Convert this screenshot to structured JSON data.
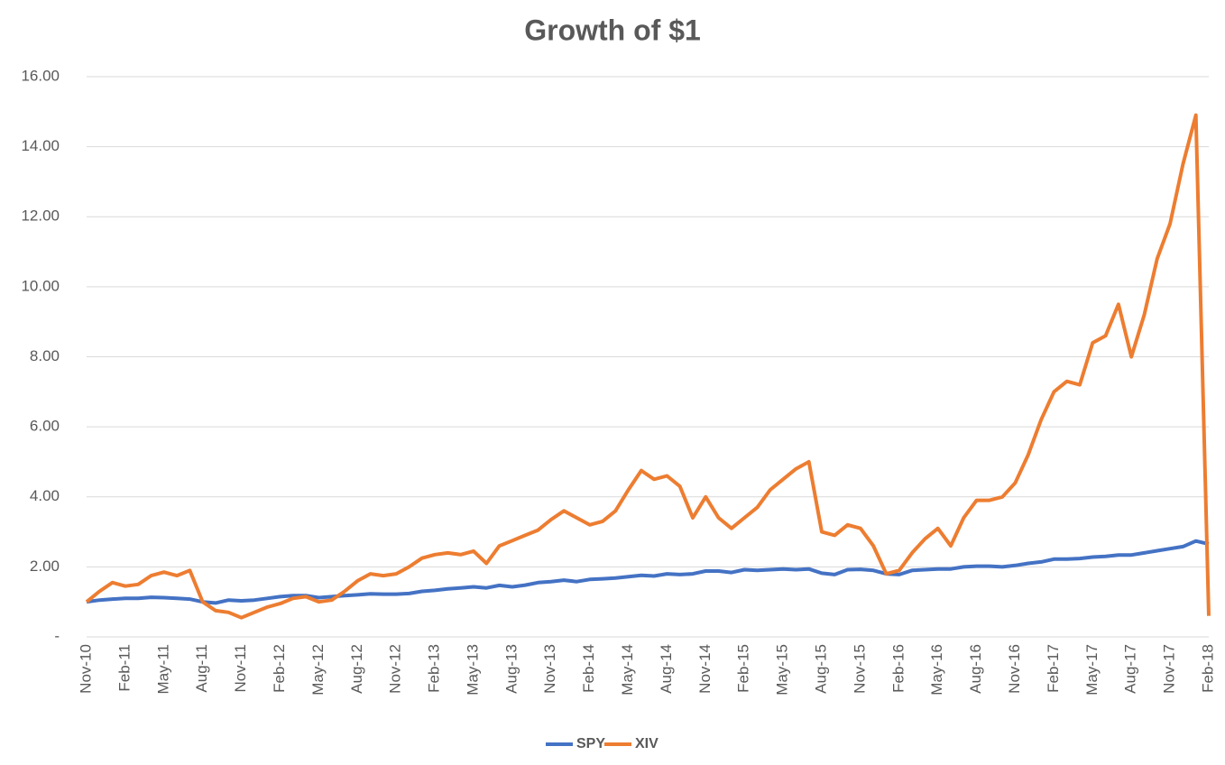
{
  "chart_data": {
    "type": "line",
    "title": "Growth of $1",
    "categories": [
      "Nov-10",
      null,
      null,
      "Feb-11",
      null,
      null,
      "May-11",
      null,
      null,
      "Aug-11",
      null,
      null,
      "Nov-11",
      null,
      null,
      "Feb-12",
      null,
      null,
      "May-12",
      null,
      null,
      "Aug-12",
      null,
      null,
      "Nov-12",
      null,
      null,
      "Feb-13",
      null,
      null,
      "May-13",
      null,
      null,
      "Aug-13",
      null,
      null,
      "Nov-13",
      null,
      null,
      "Feb-14",
      null,
      null,
      "May-14",
      null,
      null,
      "Aug-14",
      null,
      null,
      "Nov-14",
      null,
      null,
      "Feb-15",
      null,
      null,
      "May-15",
      null,
      null,
      "Aug-15",
      null,
      null,
      "Nov-15",
      null,
      null,
      "Feb-16",
      null,
      null,
      "May-16",
      null,
      null,
      "Aug-16",
      null,
      null,
      "Nov-16",
      null,
      null,
      "Feb-17",
      null,
      null,
      "May-17",
      null,
      null,
      "Aug-17",
      null,
      null,
      "Nov-17",
      null,
      null,
      "Feb-18"
    ],
    "series": [
      {
        "name": "SPY",
        "color": "#4472c4",
        "values": [
          1.0,
          1.05,
          1.08,
          1.1,
          1.1,
          1.13,
          1.12,
          1.1,
          1.08,
          1.0,
          0.97,
          1.05,
          1.03,
          1.05,
          1.1,
          1.15,
          1.18,
          1.18,
          1.12,
          1.15,
          1.18,
          1.2,
          1.23,
          1.22,
          1.22,
          1.24,
          1.3,
          1.33,
          1.37,
          1.4,
          1.43,
          1.4,
          1.47,
          1.43,
          1.48,
          1.55,
          1.58,
          1.62,
          1.58,
          1.64,
          1.66,
          1.68,
          1.72,
          1.76,
          1.74,
          1.8,
          1.78,
          1.8,
          1.88,
          1.88,
          1.84,
          1.92,
          1.9,
          1.92,
          1.94,
          1.92,
          1.94,
          1.82,
          1.78,
          1.92,
          1.93,
          1.9,
          1.8,
          1.78,
          1.9,
          1.92,
          1.94,
          1.94,
          2.0,
          2.02,
          2.02,
          2.0,
          2.04,
          2.1,
          2.14,
          2.22,
          2.22,
          2.24,
          2.28,
          2.3,
          2.34,
          2.34,
          2.4,
          2.46,
          2.52,
          2.58,
          2.74,
          2.65
        ]
      },
      {
        "name": "XIV",
        "color": "#ed7d31",
        "values": [
          1.0,
          1.3,
          1.55,
          1.45,
          1.5,
          1.75,
          1.85,
          1.75,
          1.9,
          1.0,
          0.75,
          0.7,
          0.55,
          0.7,
          0.85,
          0.95,
          1.1,
          1.15,
          1.0,
          1.05,
          1.3,
          1.6,
          1.8,
          1.75,
          1.8,
          2.0,
          2.25,
          2.35,
          2.4,
          2.35,
          2.45,
          2.1,
          2.6,
          2.75,
          2.9,
          3.05,
          3.35,
          3.6,
          3.4,
          3.2,
          3.3,
          3.6,
          4.2,
          4.75,
          4.5,
          4.6,
          4.3,
          3.4,
          4.0,
          3.4,
          3.1,
          3.4,
          3.7,
          4.2,
          4.5,
          4.8,
          5.0,
          3.0,
          2.9,
          3.2,
          3.1,
          2.6,
          1.8,
          1.9,
          2.4,
          2.8,
          3.1,
          2.6,
          3.4,
          3.9,
          3.9,
          4.0,
          4.4,
          5.2,
          6.2,
          7.0,
          7.3,
          7.2,
          8.4,
          8.6,
          9.5,
          8.0,
          9.2,
          10.8,
          11.8,
          13.5,
          14.9,
          0.6
        ]
      }
    ],
    "ylim": [
      0,
      16
    ],
    "yticks": [
      {
        "value": 0,
        "label": "-"
      },
      {
        "value": 2,
        "label": "2.00"
      },
      {
        "value": 4,
        "label": "4.00"
      },
      {
        "value": 6,
        "label": "6.00"
      },
      {
        "value": 8,
        "label": "8.00"
      },
      {
        "value": 10,
        "label": "10.00"
      },
      {
        "value": 12,
        "label": "12.00"
      },
      {
        "value": 14,
        "label": "14.00"
      },
      {
        "value": 16,
        "label": "16.00"
      }
    ],
    "grid": true,
    "legend": "bottom"
  }
}
